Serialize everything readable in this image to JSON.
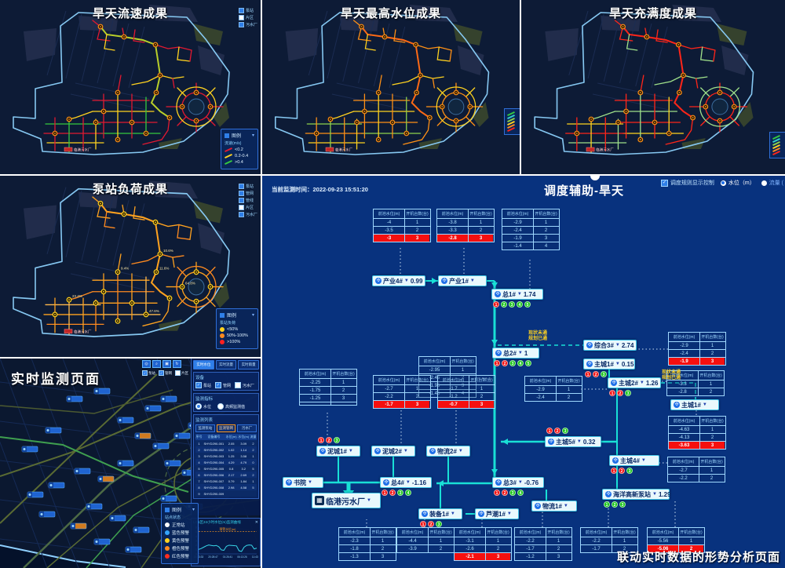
{
  "colors": {
    "dispatch_bg": "#08327e",
    "flow_line": "#19e0d6",
    "alarm_red": "#f50f0f",
    "node_bg": "#e9f8fc",
    "boundary_blue": "#86c8f2"
  },
  "panels": {
    "p1": {
      "title": "旱天流速成果",
      "palette": {
        "a": "#e11931",
        "b": "#ffd21f",
        "c": "#35c93f",
        "t": "#b9cf2a",
        "marker": "#ff9015"
      },
      "mini_legend": [
        "泵站",
        "片区",
        "污水厂"
      ],
      "legend": {
        "title": "图例",
        "subtitle": "流速(m/s)",
        "items": [
          {
            "label": "<0.2",
            "color": "#e11931"
          },
          {
            "label": "0.2-0.4",
            "color": "#ffd21f"
          },
          {
            "label": ">0.4",
            "color": "#35c93f"
          }
        ]
      },
      "plant_label": "临港污水厂"
    },
    "p2": {
      "title": "旱天最高水位成果",
      "palette": {
        "a": "#ff9015",
        "b": "#ffd21f",
        "c": "#8fd24d",
        "t": "#ff6a15",
        "marker": "#ff9015"
      },
      "plant_label": "临港污水厂"
    },
    "p3": {
      "title": "旱天充满度成果",
      "palette": {
        "a": "#ff2519",
        "b": "#9fe08a",
        "c": "#ffd21f",
        "t": "#ff2519",
        "marker": "#ff9015"
      },
      "plant_label": "临港污水厂"
    },
    "p4": {
      "title": "泵站负荷成果",
      "palette": {
        "a": "#ffa21f",
        "b": "#ff8a1f",
        "c": "#ffb94d",
        "t": "#ffa21f",
        "marker": "#ffd21f"
      },
      "mini_legend": [
        "泵站",
        "管网",
        "管线",
        "片区",
        "污水厂"
      ],
      "legend": {
        "title": "图例",
        "subtitle": "泵站负荷",
        "items": [
          {
            "label": "<50%",
            "color": "#ffd21f"
          },
          {
            "label": "50%-100%",
            "color": "#ff8a1f"
          },
          {
            "label": ">100%",
            "color": "#ff2020"
          }
        ]
      },
      "marker_labels": [
        "10.6%",
        "11.6%",
        "64.8%",
        "9.4%",
        "23.4%",
        "47.6%"
      ],
      "plant_label": "临港污水厂"
    },
    "p5": {
      "title": "实时监测页面",
      "tabs": [
        {
          "label": "实时水位",
          "active": true
        },
        {
          "label": "实时流量",
          "active": false
        },
        {
          "label": "实时雨量",
          "active": false
        }
      ],
      "toolbar_checks": [
        {
          "label": "泵站",
          "checked": true
        },
        {
          "label": "管网",
          "checked": true
        },
        {
          "label": "片区",
          "checked": false
        }
      ],
      "device": {
        "title": "设备",
        "items": [
          {
            "label": "泵站",
            "checked": true
          },
          {
            "label": "管网",
            "checked": true
          },
          {
            "label": "污水厂",
            "checked": false
          }
        ]
      },
      "indicator": {
        "title": "监测指标",
        "options": [
          {
            "label": "水位",
            "selected": true
          },
          {
            "label": "高频监测值",
            "selected": false
          }
        ]
      },
      "list": {
        "title": "监测列表",
        "buttons": [
          {
            "label": "监测泵站",
            "active": false
          },
          {
            "label": "监测管网",
            "active": true
          },
          {
            "label": "污水厂",
            "active": false
          }
        ],
        "headers": [
          "序号",
          "设备编号",
          "水位(m)",
          "水位(m)",
          "流量"
        ],
        "rows": [
          [
            "1",
            "SHYD290-001",
            "2.05",
            "3.09",
            "2"
          ],
          [
            "2",
            "SHYD290-002",
            "1.02",
            "1.14",
            "2"
          ],
          [
            "3",
            "SHYD290-003",
            "1.25",
            "3.58",
            "1"
          ],
          [
            "4",
            "SHYD290-004",
            "4.29",
            "4.79",
            "0"
          ],
          [
            "5",
            "SHYD290-005",
            "0.8",
            "3.2",
            "5"
          ],
          [
            "6",
            "SHYD290-006",
            "2.17",
            "2.69",
            "2"
          ],
          [
            "7",
            "SHYD290-007",
            "0.79",
            "1.84",
            "1"
          ],
          [
            "8",
            "SHYD290-008",
            "2.98",
            "4.58",
            "5"
          ],
          [
            "9",
            "SHYD290-009",
            "",
            "",
            ""
          ]
        ]
      },
      "chart": {
        "type": "line",
        "title": "LG1区24小时水位(m)监测曲线",
        "warn_label": "预警水位(m)",
        "warn_value": 5,
        "y_ticks": [
          0,
          1,
          2,
          3,
          4,
          5,
          6
        ],
        "x_labels": [
          "15:43:33",
          "20:28:47",
          "01:26:41",
          "06:13:26",
          "11:43:26"
        ],
        "series": [
          1.0,
          1.2,
          1.5,
          1.8,
          2.0,
          1.9,
          1.8,
          1.9,
          1.6,
          0.9,
          0.8,
          1.7,
          1.95,
          1.9,
          1.85,
          1.8,
          0.7,
          0.55,
          1.5,
          1.9,
          2.0,
          1.95,
          1.1,
          1.3
        ],
        "line_color": "#38d6e8",
        "warn_color": "#ff9a1f"
      },
      "legend": {
        "title": "图例",
        "subtitle": "站点状态",
        "items": [
          {
            "label": "正常站",
            "color": "#ffffff"
          },
          {
            "label": "蓝色预警",
            "color": "#35a6ff"
          },
          {
            "label": "黄色预警",
            "color": "#ffd21f"
          },
          {
            "label": "橙色预警",
            "color": "#ff8a1f"
          },
          {
            "label": "红色预警",
            "color": "#ff2d1f"
          }
        ]
      }
    }
  },
  "dispatch": {
    "time_label": "当前监测时间：",
    "time_value": "2022-09-23 15:51:20",
    "title": "调度辅助-旱天",
    "controls": {
      "rule_label": "调度规则显示控制",
      "rule_checked": true,
      "level_label": "水位（m）",
      "level_selected": true,
      "flow_label": "流量 ("
    },
    "caption": "联动实时数据的形势分析页面",
    "dash_note": [
      "现状未通",
      "规划已通"
    ],
    "table_header": [
      "前池水位(m)",
      "开机台数(台)"
    ],
    "nodes": [
      {
        "id": "cy4",
        "label": "产业4#",
        "value": "0.99",
        "dots": []
      },
      {
        "id": "cy1",
        "label": "产业1#",
        "value": "",
        "dots": []
      },
      {
        "id": "z1",
        "label": "总1#",
        "value": "1.74",
        "dots": [
          "r",
          "g",
          "g",
          "g",
          "g"
        ],
        "dotsPos": "below"
      },
      {
        "id": "zh3",
        "label": "综合3#",
        "value": "2.74",
        "dots": []
      },
      {
        "id": "z2",
        "label": "总2#",
        "value": "1",
        "dots": [
          "r",
          "r",
          "g",
          "g",
          "g"
        ],
        "dotsPos": "below"
      },
      {
        "id": "zc1a",
        "label": "主城1#",
        "value": "0.15",
        "dots": [
          "r",
          "r",
          "g"
        ],
        "dotsPos": "below"
      },
      {
        "id": "zc2",
        "label": "主城2#",
        "value": "1.26",
        "dots": [
          "r",
          "r",
          "g"
        ],
        "dotsPos": "below"
      },
      {
        "id": "zc1b",
        "label": "主城1#",
        "value": "",
        "dots": []
      },
      {
        "id": "zc5",
        "label": "主城5#",
        "value": "0.32",
        "dots": [
          "r",
          "r",
          "g"
        ],
        "dotsPos": "above"
      },
      {
        "id": "nc1",
        "label": "泥城1#",
        "value": "",
        "dots": [
          "r",
          "r",
          "g"
        ],
        "dotsPos": "above"
      },
      {
        "id": "nc2",
        "label": "泥城2#",
        "value": "",
        "dots": []
      },
      {
        "id": "wl2",
        "label": "物流2#",
        "value": "",
        "dots": []
      },
      {
        "id": "sy",
        "label": "书院",
        "value": "",
        "dots": []
      },
      {
        "id": "z4",
        "label": "总4#",
        "value": "-1.16",
        "dots": [
          "r",
          "r",
          "g",
          "g"
        ],
        "dotsPos": "below"
      },
      {
        "id": "z3",
        "label": "总3#",
        "value": "-0.76",
        "dots": [
          "r",
          "r",
          "g",
          "g"
        ],
        "dotsPos": "below"
      },
      {
        "id": "plant",
        "label": "临港污水厂",
        "value": "",
        "dots": [],
        "big": true
      },
      {
        "id": "zb1",
        "label": "装备1#",
        "value": "",
        "dots": [
          "r",
          "r",
          "g"
        ],
        "dotsPos": "below"
      },
      {
        "id": "lc1",
        "label": "芦潮1#",
        "value": "",
        "dots": []
      },
      {
        "id": "wl1",
        "label": "物流1#",
        "value": "",
        "dots": []
      },
      {
        "id": "zc4",
        "label": "主城4#",
        "value": "",
        "dots": [
          "r",
          "r",
          "g"
        ],
        "dotsPos": "below"
      },
      {
        "id": "hy",
        "label": "海洋高新泵站",
        "value": "1.29",
        "dots": [
          "g",
          "g",
          "g"
        ],
        "dotsPos": "below"
      }
    ],
    "tables": [
      {
        "id": "tA1",
        "rows": [
          [
            "-4",
            "1",
            ""
          ],
          [
            "-3.5",
            "2",
            ""
          ],
          [
            "-3",
            "3",
            "red"
          ]
        ]
      },
      {
        "id": "tA2",
        "rows": [
          [
            "-3.8",
            "1",
            ""
          ],
          [
            "-3.3",
            "2",
            ""
          ],
          [
            "-2.8",
            "3",
            "red"
          ]
        ]
      },
      {
        "id": "tA3",
        "rows": [
          [
            "-2.9",
            "1",
            ""
          ],
          [
            "-2.4",
            "2",
            ""
          ],
          [
            "-1.9",
            "3",
            ""
          ],
          [
            "-1.4",
            "4",
            ""
          ]
        ]
      },
      {
        "id": "tZH3",
        "rows": [
          [
            "-2.9",
            "1",
            ""
          ],
          [
            "-2.4",
            "2",
            ""
          ],
          [
            "-1.9",
            "3",
            "red"
          ]
        ]
      },
      {
        "id": "tZ2",
        "rows": [
          [
            "-2.95",
            "1",
            ""
          ],
          [
            "-2.45",
            "2",
            ""
          ],
          [
            "-1.95",
            "3",
            ""
          ],
          [
            "-1.45",
            "4",
            ""
          ]
        ]
      },
      {
        "id": "tZC1a",
        "rows": [
          [
            "-3.3",
            "1",
            ""
          ],
          [
            "-2.8",
            "2",
            ""
          ]
        ]
      },
      {
        "id": "tZC2",
        "rows": [
          [
            "-2.9",
            "1",
            ""
          ],
          [
            "-2.4",
            "2",
            ""
          ]
        ]
      },
      {
        "id": "tZC1b",
        "rows": [
          [
            "-4.63",
            "1",
            ""
          ],
          [
            "-4.13",
            "2",
            ""
          ],
          [
            "-3.63",
            "3",
            "red"
          ]
        ]
      },
      {
        "id": "tML",
        "rows": [
          [
            "-2.25",
            "1",
            ""
          ],
          [
            "-1.75",
            "2",
            ""
          ],
          [
            "-1.25",
            "3",
            ""
          ],
          [
            "",
            "",
            ""
          ]
        ]
      },
      {
        "id": "tNC2",
        "rows": [
          [
            "-2.7",
            "1",
            ""
          ],
          [
            "-2.2",
            "2",
            ""
          ],
          [
            "-1.7",
            "3",
            "red"
          ]
        ]
      },
      {
        "id": "tWL2",
        "rows": [
          [
            "-1.7",
            "1",
            ""
          ],
          [
            "-1.2",
            "2",
            ""
          ],
          [
            "-0.7",
            "3",
            "red"
          ]
        ]
      },
      {
        "id": "tZC4",
        "rows": [
          [
            "-2.7",
            "1",
            ""
          ],
          [
            "-2.2",
            "2",
            ""
          ]
        ]
      },
      {
        "id": "tB1",
        "rows": [
          [
            "-2.3",
            "1",
            ""
          ],
          [
            "-1.8",
            "2",
            ""
          ],
          [
            "-1.3",
            "3",
            ""
          ]
        ]
      },
      {
        "id": "tB2",
        "rows": [
          [
            "-4.4",
            "1",
            ""
          ],
          [
            "-3.9",
            "2",
            ""
          ]
        ]
      },
      {
        "id": "tB3",
        "rows": [
          [
            "-3.1",
            "1",
            ""
          ],
          [
            "-2.6",
            "2",
            ""
          ],
          [
            "-2.1",
            "3",
            "red"
          ]
        ]
      },
      {
        "id": "tB4",
        "rows": [
          [
            "-2.2",
            "1",
            ""
          ],
          [
            "-1.7",
            "2",
            ""
          ],
          [
            "-1.2",
            "3",
            ""
          ]
        ]
      },
      {
        "id": "tB5",
        "rows": [
          [
            "-2.2",
            "1",
            ""
          ],
          [
            "-1.7",
            "2",
            ""
          ]
        ]
      },
      {
        "id": "tB6",
        "rows": [
          [
            "-5.56",
            "1",
            ""
          ],
          [
            "-5.06",
            "2",
            "red"
          ]
        ]
      }
    ]
  }
}
